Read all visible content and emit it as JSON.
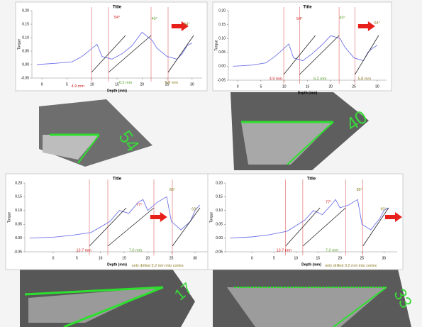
{
  "chart_data": [
    {
      "type": "line",
      "title": "Title",
      "x_label": "Depth (mm)",
      "y_label": "Torque",
      "xlim": [
        -2,
        32
      ],
      "ylim": [
        -0.05,
        0.2
      ],
      "xticks": [
        0,
        5,
        10,
        15,
        20,
        25,
        30
      ],
      "yticks": [
        -0.05,
        {
          "value": 0,
          "label": "0.00"
        },
        0.05,
        {
          "value": 0.1,
          "label": "0.10"
        },
        0.15,
        {
          "value": 0.2,
          "label": "0.20"
        }
      ],
      "x": [
        -1,
        3,
        6,
        8,
        10,
        11,
        12,
        14,
        16,
        18,
        20,
        22,
        23,
        25,
        27,
        28,
        29,
        30
      ],
      "series": [
        {
          "name": "Torque",
          "color": "#6f73e8",
          "values": [
            0,
            0.005,
            0.01,
            0.03,
            0.06,
            0.075,
            0.03,
            0.02,
            0.04,
            0.07,
            0.12,
            0.09,
            0.06,
            0.03,
            0.02,
            0.04,
            0.07,
            0.08
          ]
        }
      ],
      "annotations": [
        {
          "text": "54°",
          "color": "#d42020"
        },
        {
          "text": "40°",
          "color": "#5aa02a"
        },
        {
          "text": "64°",
          "color": "#8a7a20"
        },
        {
          "text": "4.9 mm",
          "color": "#d42020"
        },
        {
          "text": "6.2 mm",
          "color": "#5aa02a"
        },
        {
          "text": "5.8 mm",
          "color": "#8a7a20"
        }
      ]
    },
    {
      "type": "line",
      "title": "Title",
      "x_label": "Depth (mm)",
      "y_label": "Torque",
      "xlim": [
        -2,
        32
      ],
      "ylim": [
        -0.05,
        0.2
      ],
      "xticks": [
        0,
        5,
        10,
        15,
        20,
        25,
        30
      ],
      "yticks": [
        -0.05,
        {
          "value": 0,
          "label": "0.00"
        },
        0.05,
        {
          "value": 0.1,
          "label": "0.10"
        },
        0.15,
        {
          "value": 0.2,
          "label": "0.20"
        }
      ],
      "x": [
        -1,
        3,
        6,
        8,
        10,
        11,
        12,
        14,
        16,
        18,
        20,
        22,
        23,
        25,
        27,
        28,
        29,
        30
      ],
      "series": [
        {
          "name": "Torque",
          "color": "#6f73e8",
          "values": [
            0,
            0.004,
            0.012,
            0.035,
            0.065,
            0.08,
            0.03,
            0.02,
            0.045,
            0.075,
            0.11,
            0.1,
            0.07,
            0.03,
            0.02,
            0.05,
            0.065,
            0.075
          ]
        }
      ],
      "annotations": [
        {
          "text": "54°",
          "color": "#d42020"
        },
        {
          "text": "40°",
          "color": "#5aa02a"
        },
        {
          "text": "64°",
          "color": "#8a7a20"
        },
        {
          "text": "4.9 mm",
          "color": "#d42020"
        },
        {
          "text": "6.2 mm",
          "color": "#5aa02a"
        },
        {
          "text": "5.8 mm",
          "color": "#8a7a20"
        }
      ]
    },
    {
      "type": "line",
      "title": "Title",
      "x_label": "Depth (mm)",
      "y_label": "Torque",
      "xlim": [
        -6,
        33
      ],
      "ylim": [
        -0.05,
        0.2
      ],
      "xticks": [
        0,
        5,
        10,
        15,
        20,
        25,
        30
      ],
      "yticks": [
        -0.05,
        {
          "value": 0,
          "label": "0.00"
        },
        0.05,
        {
          "value": 0.1,
          "label": "0.10"
        },
        0.15,
        {
          "value": 0.2,
          "label": "0.20"
        }
      ],
      "x": [
        -5,
        0,
        4,
        8,
        12,
        14,
        16,
        18,
        19,
        20,
        22,
        24,
        25,
        27,
        29,
        30,
        31
      ],
      "series": [
        {
          "name": "Torque",
          "color": "#6f73e8",
          "values": [
            0,
            0.003,
            0.01,
            0.02,
            0.06,
            0.1,
            0.09,
            0.13,
            0.14,
            0.1,
            0.13,
            0.15,
            0.06,
            0.03,
            0.06,
            0.1,
            0.12
          ]
        }
      ],
      "annotations": [
        {
          "text": "77°",
          "color": "#d42020"
        },
        {
          "text": "85°",
          "color": "#8a7a20"
        },
        {
          "text": "93°",
          "color": "#8a7a20"
        },
        {
          "text": "13.7 mm",
          "color": "#d42020"
        },
        {
          "text": "7.0 mm",
          "color": "#5aa02a"
        },
        {
          "text": "only drilled 3.2 mm into cortex",
          "color": "#8a7a20"
        }
      ]
    },
    {
      "type": "line",
      "title": "Title",
      "x_label": "Depth (mm)",
      "y_label": "Torque",
      "xlim": [
        -6,
        33
      ],
      "ylim": [
        -0.05,
        0.2
      ],
      "xticks": [
        0,
        5,
        10,
        15,
        20,
        25,
        30
      ],
      "yticks": [
        -0.05,
        {
          "value": 0,
          "label": "0.00"
        },
        0.05,
        {
          "value": 0.1,
          "label": "0.10"
        },
        0.15,
        {
          "value": 0.2,
          "label": "0.20"
        }
      ],
      "x": [
        -5,
        0,
        4,
        8,
        12,
        14,
        16,
        18,
        19,
        20,
        22,
        24,
        25,
        27,
        29,
        30,
        31
      ],
      "series": [
        {
          "name": "Torque",
          "color": "#6f73e8",
          "values": [
            0,
            0.004,
            0.012,
            0.025,
            0.065,
            0.1,
            0.085,
            0.12,
            0.14,
            0.11,
            0.12,
            0.14,
            0.05,
            0.03,
            0.07,
            0.1,
            0.11
          ]
        }
      ],
      "annotations": [
        {
          "text": "77°",
          "color": "#d42020"
        },
        {
          "text": "85°",
          "color": "#8a7a20"
        },
        {
          "text": "93°",
          "color": "#8a7a20"
        },
        {
          "text": "13.7 mm",
          "color": "#d42020"
        },
        {
          "text": "7.0 mm",
          "color": "#5aa02a"
        },
        {
          "text": "only drilled 3.2 mm into cortex",
          "color": "#8a7a20"
        }
      ]
    }
  ],
  "photo_labels": [
    "54",
    "40",
    "17",
    "33"
  ]
}
